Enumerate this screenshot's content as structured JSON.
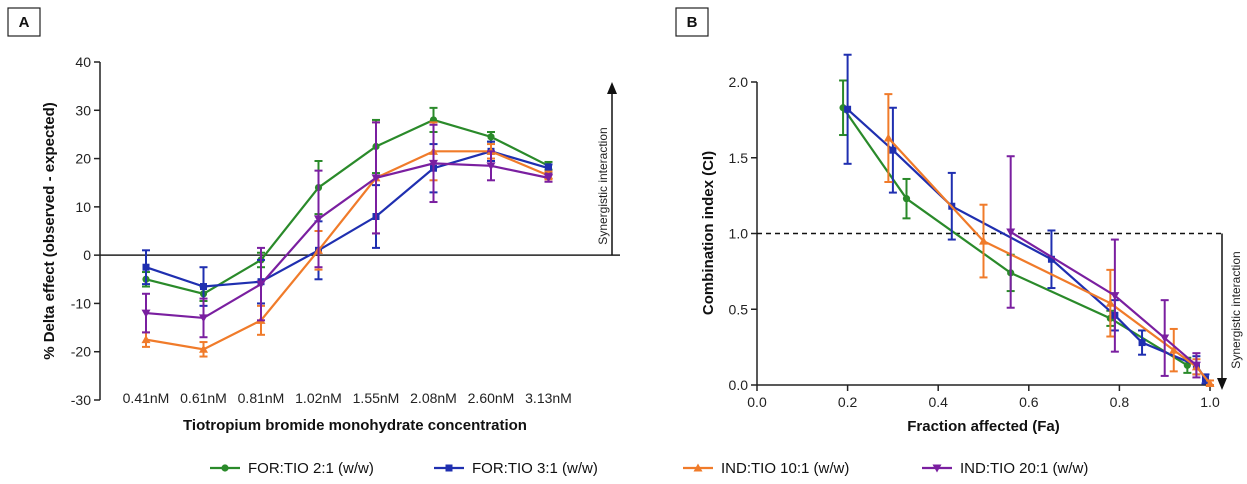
{
  "colors": {
    "FOR:TIO 2:1 (w/w)": "#2a8a2a",
    "FOR:TIO 3:1 (w/w)": "#1f2fb0",
    "IND:TIO 10:1 (w/w)": "#f07b2a",
    "IND:TIO 20:1 (w/w)": "#7a1fa0"
  },
  "legend": [
    "FOR:TIO 2:1 (w/w)",
    "FOR:TIO 3:1 (w/w)",
    "IND:TIO 10:1 (w/w)",
    "IND:TIO 20:1 (w/w)"
  ],
  "chart_data": [
    {
      "panel": "A",
      "type": "line",
      "xlabel": "Tiotropium bromide monohydrate concentration",
      "ylabel": "% Delta effect (observed - expected)",
      "annotation": "Synergistic interaction",
      "categories": [
        "0.41nM",
        "0.61nM",
        "0.81nM",
        "1.02nM",
        "1.55nM",
        "2.08nM",
        "2.60nM",
        "3.13nM"
      ],
      "ylim": [
        -30,
        40
      ],
      "yticks": [
        -30,
        -20,
        -10,
        0,
        10,
        20,
        30,
        40
      ],
      "series": [
        {
          "name": "FOR:TIO 2:1 (w/w)",
          "values": [
            -5,
            -8,
            -1,
            14,
            22.5,
            28,
            24.5,
            18.5
          ],
          "err": [
            1.5,
            1.5,
            1.5,
            5.5,
            5.5,
            2.5,
            1,
            0.8
          ]
        },
        {
          "name": "FOR:TIO 3:1 (w/w)",
          "values": [
            -2.5,
            -6.5,
            -5.5,
            1,
            8,
            18,
            21.5,
            18
          ],
          "err": [
            3.5,
            4,
            4.5,
            6,
            6.5,
            5,
            2,
            0.8
          ]
        },
        {
          "name": "IND:TIO 10:1 (w/w)",
          "values": [
            -17.5,
            -19.5,
            -13.5,
            1,
            16,
            21.5,
            21.5,
            16.5
          ],
          "err": [
            1.5,
            1.5,
            3,
            4,
            11.5,
            6,
            1.5,
            0.8
          ]
        },
        {
          "name": "IND:TIO 20:1 (w/w)",
          "values": [
            -12,
            -13,
            -6,
            7.5,
            16,
            19,
            18.5,
            16
          ],
          "err": [
            4,
            4,
            7.5,
            10,
            11.5,
            8,
            3,
            0.8
          ]
        }
      ]
    },
    {
      "panel": "B",
      "type": "line",
      "xlabel": "Fraction affected (Fa)",
      "ylabel": "Combination index (CI)",
      "annotation": "Synergistic interaction",
      "xlim": [
        0,
        1
      ],
      "ylim": [
        0,
        2
      ],
      "xticks": [
        "0.0",
        "0.2",
        "0.4",
        "0.6",
        "0.8",
        "1.0"
      ],
      "yticks": [
        "0.0",
        "0.5",
        "1.0",
        "1.5",
        "2.0"
      ],
      "reference_line": 1.0,
      "series": [
        {
          "name": "FOR:TIO 2:1 (w/w)",
          "x": [
            0.19,
            0.33,
            0.56,
            0.78,
            0.95
          ],
          "y": [
            1.83,
            1.23,
            0.74,
            0.44,
            0.13
          ],
          "err": [
            0.18,
            0.13,
            0.12,
            0.05,
            0.05
          ]
        },
        {
          "name": "FOR:TIO 3:1 (w/w)",
          "x": [
            0.2,
            0.3,
            0.43,
            0.65,
            0.79,
            0.85,
            0.97,
            0.99
          ],
          "y": [
            1.82,
            1.55,
            1.18,
            0.83,
            0.46,
            0.28,
            0.13,
            0.04
          ],
          "err": [
            0.36,
            0.28,
            0.22,
            0.19,
            0.1,
            0.08,
            0.06,
            0.03
          ]
        },
        {
          "name": "IND:TIO 10:1 (w/w)",
          "x": [
            0.29,
            0.5,
            0.78,
            0.92,
            0.97,
            1.0
          ],
          "y": [
            1.63,
            0.95,
            0.54,
            0.23,
            0.12,
            0.01
          ],
          "err": [
            0.29,
            0.24,
            0.22,
            0.14,
            0.05,
            0.02
          ]
        },
        {
          "name": "IND:TIO 20:1 (w/w)",
          "x": [
            0.56,
            0.79,
            0.9,
            0.97
          ],
          "y": [
            1.01,
            0.59,
            0.31,
            0.13
          ],
          "err": [
            0.5,
            0.37,
            0.25,
            0.08
          ]
        }
      ]
    }
  ]
}
